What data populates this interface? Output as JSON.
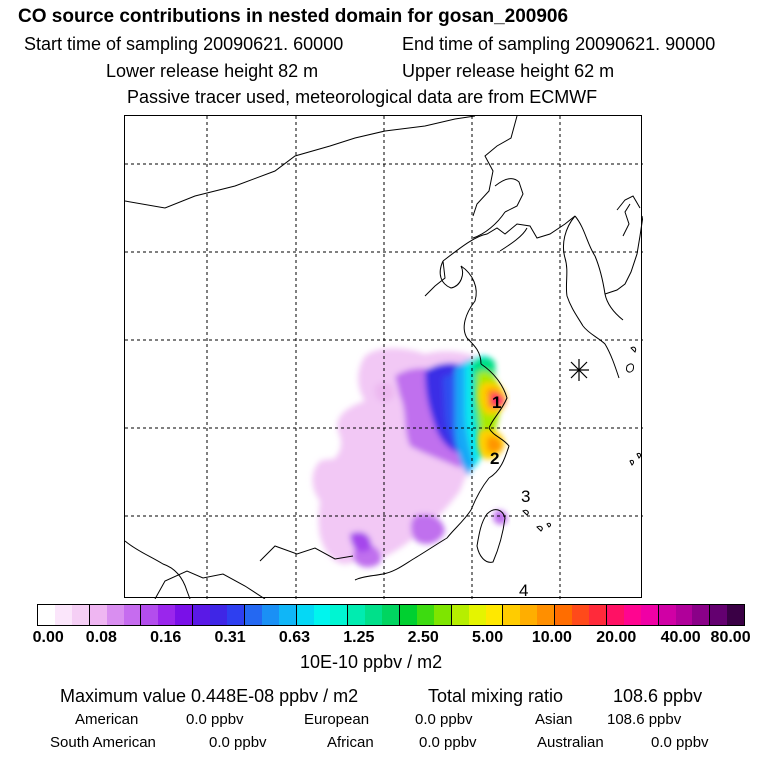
{
  "header": {
    "title": "CO  source contributions in nested domain for gosan_200906",
    "start_label": "Start time of sampling 20090621. 60000",
    "end_label": "End time of sampling 20090621. 90000",
    "lower_label": "Lower release height   82 m",
    "upper_label": "Upper release height   62 m",
    "note": "Passive tracer used, meteorological data are from ECMWF"
  },
  "map": {
    "region_labels": [
      "1",
      "2",
      "3",
      "4"
    ],
    "receptor_marker": "star-icon"
  },
  "colorbar": {
    "ticks": [
      "0.00",
      "0.08",
      "0.16",
      "0.31",
      "0.63",
      "1.25",
      "2.50",
      "5.00",
      "10.00",
      "20.00",
      "40.00",
      "80.00"
    ],
    "unit": "10E-10 ppbv / m2",
    "colors": [
      "#ffffff",
      "#fbe6fb",
      "#f5cff5",
      "#efb6f2",
      "#d98ef0",
      "#c66cef",
      "#b34ded",
      "#9a26ec",
      "#7a10e8",
      "#5a19e6",
      "#3f26e6",
      "#2e3ff0",
      "#2468f2",
      "#1a90f5",
      "#10b6f7",
      "#05d8f5",
      "#00f5ee",
      "#00f5d2",
      "#00ecb0",
      "#00e08a",
      "#00d560",
      "#00d030",
      "#3ddb10",
      "#7ee500",
      "#b6ee00",
      "#e5f400",
      "#ffe800",
      "#ffcc00",
      "#ffae00",
      "#ff8f00",
      "#ff6d00",
      "#ff4a1a",
      "#ff2a3a",
      "#ff1164",
      "#ff0590",
      "#f000a5",
      "#d000a5",
      "#b0009a",
      "#8a0088",
      "#640070",
      "#3a0045"
    ]
  },
  "stats": {
    "max_label": "Maximum value  0.448E-08 ppbv / m2",
    "total_label": "Total mixing ratio",
    "total_value": "108.6 ppbv"
  },
  "regions": [
    {
      "name": "American",
      "value": "0.0 ppbv"
    },
    {
      "name": "European",
      "value": "0.0 ppbv"
    },
    {
      "name": "Asian",
      "value": "108.6 ppbv"
    },
    {
      "name": "South American",
      "value": "0.0 ppbv"
    },
    {
      "name": "African",
      "value": "0.0 ppbv"
    },
    {
      "name": "Australian",
      "value": "0.0 ppbv"
    }
  ]
}
